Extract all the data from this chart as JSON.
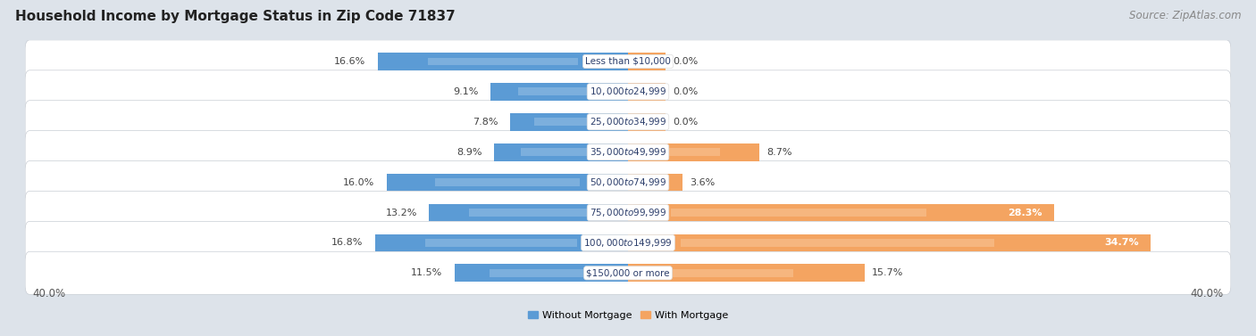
{
  "title": "Household Income by Mortgage Status in Zip Code 71837",
  "source": "Source: ZipAtlas.com",
  "categories": [
    "Less than $10,000",
    "$10,000 to $24,999",
    "$25,000 to $34,999",
    "$35,000 to $49,999",
    "$50,000 to $74,999",
    "$75,000 to $99,999",
    "$100,000 to $149,999",
    "$150,000 or more"
  ],
  "without_mortgage": [
    16.6,
    9.1,
    7.8,
    8.9,
    16.0,
    13.2,
    16.8,
    11.5
  ],
  "with_mortgage": [
    0.0,
    0.0,
    0.0,
    8.7,
    3.6,
    28.3,
    34.7,
    15.7
  ],
  "with_mortgage_stub": [
    2.5,
    2.5,
    2.5,
    8.7,
    3.6,
    28.3,
    34.7,
    15.7
  ],
  "color_without": "#5b9bd5",
  "color_without_light": "#9dc3e6",
  "color_with": "#f4a461",
  "color_with_light": "#f8c99e",
  "axis_max": 40.0,
  "bg_color": "#dde3ea",
  "row_bg": "#ffffff",
  "title_fontsize": 11,
  "source_fontsize": 8.5,
  "cat_label_fontsize": 7.5,
  "bar_label_fontsize": 8,
  "axis_label_fontsize": 8.5
}
